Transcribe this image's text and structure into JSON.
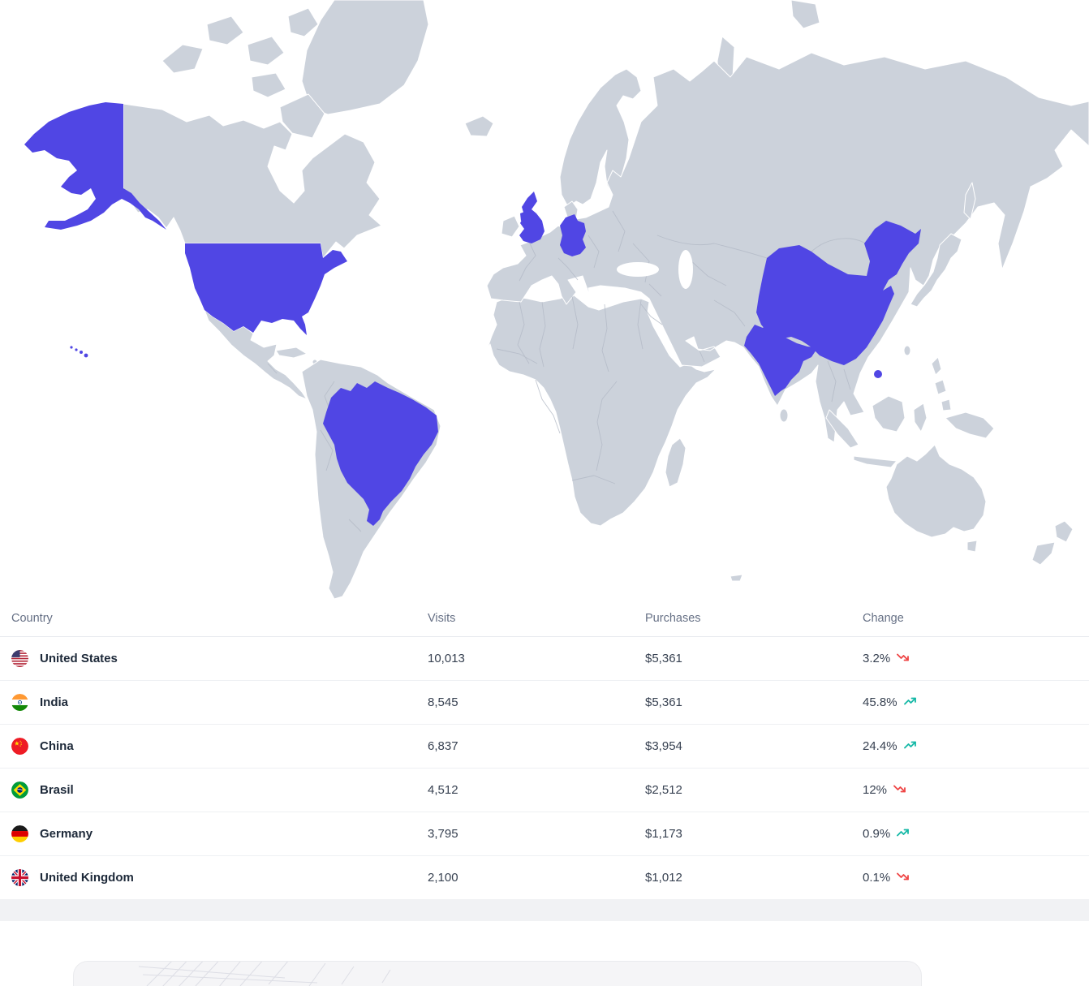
{
  "map": {
    "highlighted_countries": [
      "United States",
      "Brasil",
      "United Kingdom",
      "Germany",
      "India",
      "China"
    ],
    "colors": {
      "highlight": "#5046e4",
      "land": "#ccd2db",
      "inner_border": "#b3bac6",
      "sea": "#ffffff"
    }
  },
  "table": {
    "headers": {
      "country": "Country",
      "visits": "Visits",
      "purchases": "Purchases",
      "change": "Change"
    },
    "trend_up_color": "#14b8a6",
    "trend_down_color": "#ef4444",
    "rows": [
      {
        "flag": "us",
        "country": "United States",
        "visits": "10,013",
        "purchases": "$5,361",
        "change": "3.2%",
        "trend": "down"
      },
      {
        "flag": "in",
        "country": "India",
        "visits": "8,545",
        "purchases": "$5,361",
        "change": "45.8%",
        "trend": "up"
      },
      {
        "flag": "cn",
        "country": "China",
        "visits": "6,837",
        "purchases": "$3,954",
        "change": "24.4%",
        "trend": "up"
      },
      {
        "flag": "br",
        "country": "Brasil",
        "visits": "4,512",
        "purchases": "$2,512",
        "change": "12%",
        "trend": "down"
      },
      {
        "flag": "de",
        "country": "Germany",
        "visits": "3,795",
        "purchases": "$1,173",
        "change": "0.9%",
        "trend": "up"
      },
      {
        "flag": "gb",
        "country": "United Kingdom",
        "visits": "2,100",
        "purchases": "$1,012",
        "change": "0.1%",
        "trend": "down"
      }
    ]
  }
}
